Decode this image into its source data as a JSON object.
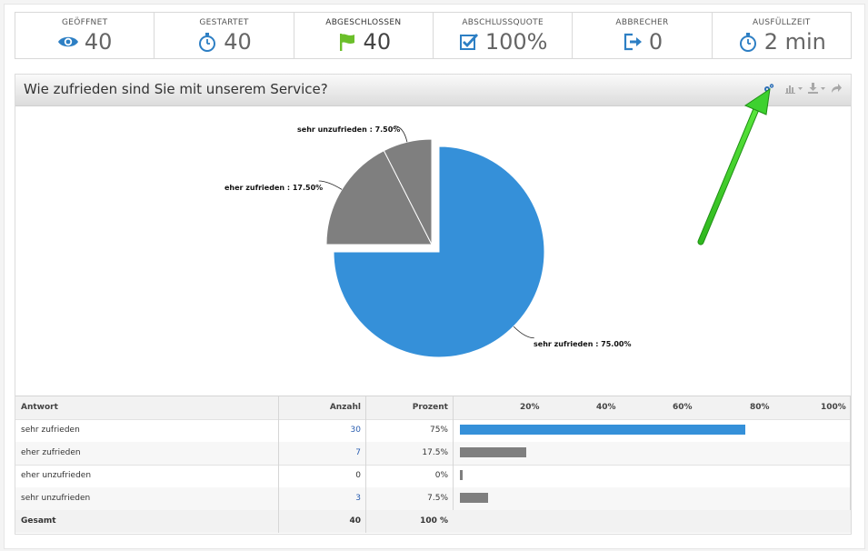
{
  "stats": [
    {
      "label": "GEÖFFNET",
      "value": "40",
      "icon": "eye-icon"
    },
    {
      "label": "GESTARTET",
      "value": "40",
      "icon": "stopwatch-icon"
    },
    {
      "label": "ABGESCHLOSSEN",
      "value": "40",
      "icon": "flag-icon"
    },
    {
      "label": "ABSCHLUSSQUOTE",
      "value": "100%",
      "icon": "checkbox-icon"
    },
    {
      "label": "ABBRECHER",
      "value": "0",
      "icon": "exit-icon"
    },
    {
      "label": "AUSFÜLLZEIT",
      "value": "2 min",
      "icon": "stopwatch-icon"
    }
  ],
  "panel": {
    "title": "Wie zufrieden sind Sie mit unserem Service?",
    "tools": [
      "settings-gears-icon",
      "chart-type-icon",
      "download-icon",
      "share-icon"
    ]
  },
  "colors": {
    "blue": "#3590d9",
    "gray": "#7f7f7f",
    "green_arrow": "#3dd12f",
    "link": "#2a5db0"
  },
  "chart_data": {
    "type": "pie",
    "slices": [
      {
        "label": "sehr zufrieden",
        "value": 75.0,
        "color": "#3590d9",
        "exploded": false
      },
      {
        "label": "eher zufrieden",
        "value": 17.5,
        "color": "#7f7f7f",
        "exploded": true
      },
      {
        "label": "eher unzufrieden",
        "value": 0,
        "color": "#7f7f7f",
        "exploded": true
      },
      {
        "label": "sehr unzufrieden",
        "value": 7.5,
        "color": "#7f7f7f",
        "exploded": true
      }
    ],
    "data_labels": {
      "sehr_zufrieden": "sehr zufrieden : 75.00%",
      "eher_zufrieden": "eher zufrieden : 17.50%",
      "sehr_unzufrieden": "sehr unzufrieden : 7.50%"
    }
  },
  "table": {
    "headers": {
      "answer": "Antwort",
      "count": "Anzahl",
      "percent": "Prozent"
    },
    "axis_ticks": [
      "20%",
      "40%",
      "60%",
      "80%",
      "100%"
    ],
    "rows": [
      {
        "answer": "sehr zufrieden",
        "count": "30",
        "percent": "75%",
        "value": 75,
        "linked": true,
        "color": "#3590d9"
      },
      {
        "answer": "eher zufrieden",
        "count": "7",
        "percent": "17.5%",
        "value": 17.5,
        "linked": true,
        "color": "#7f7f7f"
      },
      {
        "answer": "eher unzufrieden",
        "count": "0",
        "percent": "0%",
        "value": 0,
        "linked": false,
        "color": "#7f7f7f"
      },
      {
        "answer": "sehr unzufrieden",
        "count": "3",
        "percent": "7.5%",
        "value": 7.5,
        "linked": true,
        "color": "#7f7f7f"
      }
    ],
    "total": {
      "answer": "Gesamt",
      "count": "40",
      "percent": "100 %"
    }
  }
}
